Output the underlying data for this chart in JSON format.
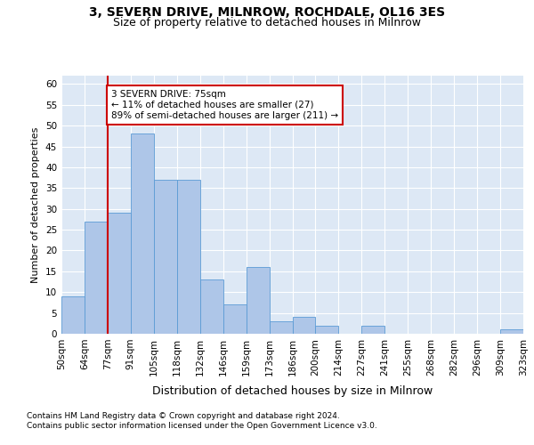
{
  "title": "3, SEVERN DRIVE, MILNROW, ROCHDALE, OL16 3ES",
  "subtitle": "Size of property relative to detached houses in Milnrow",
  "xlabel": "Distribution of detached houses by size in Milnrow",
  "ylabel": "Number of detached properties",
  "footnote1": "Contains HM Land Registry data © Crown copyright and database right 2024.",
  "footnote2": "Contains public sector information licensed under the Open Government Licence v3.0.",
  "annotation_line1": "3 SEVERN DRIVE: 75sqm",
  "annotation_line2": "← 11% of detached houses are smaller (27)",
  "annotation_line3": "89% of semi-detached houses are larger (211) →",
  "property_bin_index": 2,
  "bin_labels": [
    "50sqm",
    "64sqm",
    "77sqm",
    "91sqm",
    "105sqm",
    "118sqm",
    "132sqm",
    "146sqm",
    "159sqm",
    "173sqm",
    "186sqm",
    "200sqm",
    "214sqm",
    "227sqm",
    "241sqm",
    "255sqm",
    "268sqm",
    "282sqm",
    "296sqm",
    "309sqm",
    "323sqm"
  ],
  "values": [
    9,
    27,
    29,
    48,
    37,
    37,
    13,
    7,
    16,
    3,
    4,
    2,
    0,
    2,
    0,
    0,
    0,
    0,
    0,
    1
  ],
  "bar_color": "#aec6e8",
  "bar_edge_color": "#5b9bd5",
  "highlight_line_color": "#cc0000",
  "annotation_box_color": "#cc0000",
  "bg_color": "#ffffff",
  "plot_bg_color": "#dde8f5",
  "grid_color": "#ffffff",
  "ylim": [
    0,
    62
  ],
  "yticks": [
    0,
    5,
    10,
    15,
    20,
    25,
    30,
    35,
    40,
    45,
    50,
    55,
    60
  ],
  "title_fontsize": 10,
  "subtitle_fontsize": 9,
  "xlabel_fontsize": 9,
  "ylabel_fontsize": 8,
  "tick_fontsize": 7.5,
  "annotation_fontsize": 7.5,
  "footnote_fontsize": 6.5
}
